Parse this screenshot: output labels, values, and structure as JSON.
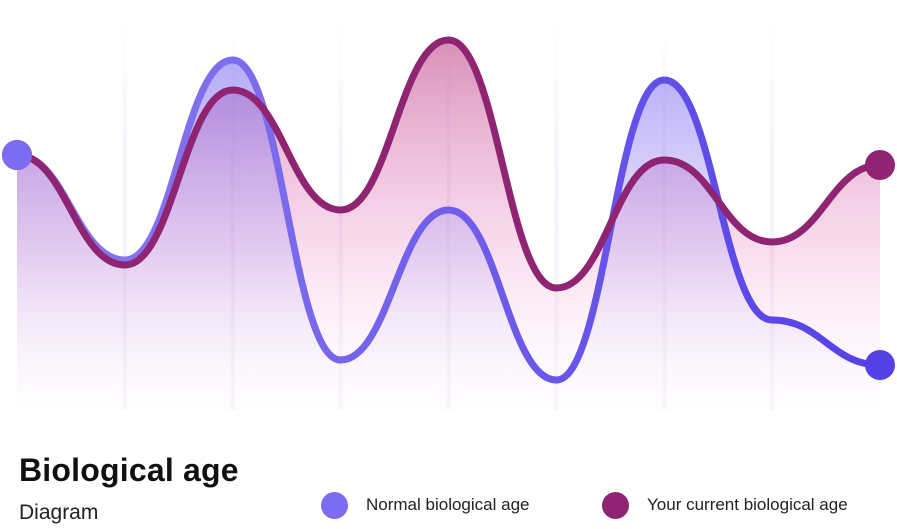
{
  "title": "Biological age",
  "subtitle": "Diagram",
  "legend": {
    "normal_label": "Normal biological age",
    "current_label": "Your current biological age"
  },
  "colors": {
    "normal": "#7b6cf0",
    "normal_end": "#5540e6",
    "current": "#8e2472",
    "grid": "#f1eef7"
  },
  "chart_data": {
    "type": "line",
    "title": "Biological age",
    "subtitle": "Diagram",
    "xlabel": "",
    "ylabel": "",
    "grid": true,
    "legend_position": "bottom-right",
    "x": [
      0,
      1,
      2,
      3,
      4,
      5,
      6,
      7,
      8
    ],
    "series": [
      {
        "name": "Normal biological age",
        "values": [
          255,
          150,
          350,
          50,
          200,
          30,
          330,
          90,
          45
        ]
      },
      {
        "name": "Your current biological age",
        "values": [
          255,
          145,
          320,
          200,
          370,
          122,
          250,
          168,
          245
        ]
      }
    ]
  }
}
